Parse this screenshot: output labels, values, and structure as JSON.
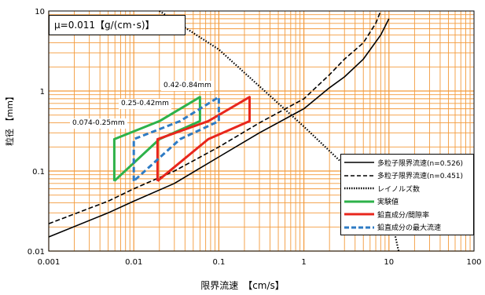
{
  "mu_label": "μ=0.011【g/(cm･s)】",
  "chart_data": {
    "type": "line",
    "x_scale": "log",
    "y_scale": "log",
    "xlim": [
      0.001,
      100
    ],
    "ylim": [
      0.01,
      10
    ],
    "xlabel": "限界流速　【cm/s】",
    "ylabel": "粒径 【mm】",
    "x_ticks": [
      "0.001",
      "0.01",
      "0.1",
      "1",
      "10",
      "100"
    ],
    "y_ticks": [
      "0.01",
      "0.1",
      "1",
      "10"
    ],
    "grid": true,
    "legend_position": "bottom-right",
    "series": [
      {
        "name": "多粒子限界流速(n=0.526)",
        "color": "#000000",
        "dash": "solid",
        "points": [
          [
            0.001,
            0.015
          ],
          [
            0.005,
            0.03
          ],
          [
            0.01,
            0.042
          ],
          [
            0.03,
            0.07
          ],
          [
            0.1,
            0.15
          ],
          [
            0.3,
            0.3
          ],
          [
            1,
            0.6
          ],
          [
            2,
            1.1
          ],
          [
            3,
            1.5
          ],
          [
            5,
            2.5
          ],
          [
            8,
            5
          ],
          [
            10,
            8
          ]
        ]
      },
      {
        "name": "多粒子限界流速(n=0.451)",
        "color": "#000000",
        "dash": "dashed",
        "points": [
          [
            0.001,
            0.022
          ],
          [
            0.005,
            0.042
          ],
          [
            0.01,
            0.06
          ],
          [
            0.03,
            0.1
          ],
          [
            0.1,
            0.2
          ],
          [
            0.3,
            0.4
          ],
          [
            1,
            0.8
          ],
          [
            2,
            1.6
          ],
          [
            3,
            2.5
          ],
          [
            5,
            4
          ],
          [
            7,
            7
          ],
          [
            8,
            10
          ]
        ]
      },
      {
        "name": "レイノルズ数",
        "color": "#000000",
        "dash": "dotted",
        "points": [
          [
            0.02,
            10
          ],
          [
            0.1,
            3.3
          ],
          [
            1,
            0.36
          ],
          [
            10,
            0.035
          ],
          [
            13,
            0.01
          ]
        ]
      },
      {
        "name": "実験値",
        "color": "#2DB24A",
        "dash": "solid",
        "points": [
          [
            0.0059,
            0.075
          ],
          [
            0.0059,
            0.25
          ],
          [
            0.02,
            0.42
          ],
          [
            0.06,
            0.84
          ],
          [
            0.06,
            0.42
          ],
          [
            0.02,
            0.25
          ],
          [
            0.0059,
            0.075
          ]
        ]
      },
      {
        "name": "鉛直成分/間隙率",
        "color": "#E8261C",
        "dash": "solid",
        "points": [
          [
            0.019,
            0.075
          ],
          [
            0.019,
            0.25
          ],
          [
            0.075,
            0.42
          ],
          [
            0.23,
            0.84
          ],
          [
            0.23,
            0.42
          ],
          [
            0.075,
            0.25
          ],
          [
            0.019,
            0.075
          ]
        ]
      },
      {
        "name": "鉛直成分の最大流速",
        "color": "#2E7BC4",
        "dash": "dashed",
        "points": [
          [
            0.01,
            0.075
          ],
          [
            0.01,
            0.25
          ],
          [
            0.035,
            0.42
          ],
          [
            0.1,
            0.84
          ],
          [
            0.1,
            0.42
          ],
          [
            0.035,
            0.25
          ],
          [
            0.01,
            0.075
          ]
        ]
      }
    ],
    "annotations": [
      {
        "text": "0.42-0.84mm",
        "x": 0.048,
        "y": 1.0
      },
      {
        "text": "0.25-0.42mm",
        "x": 0.0195,
        "y": 0.58
      },
      {
        "text": "0.074-0.25mm",
        "x": 0.0057,
        "y": 0.31
      }
    ]
  }
}
